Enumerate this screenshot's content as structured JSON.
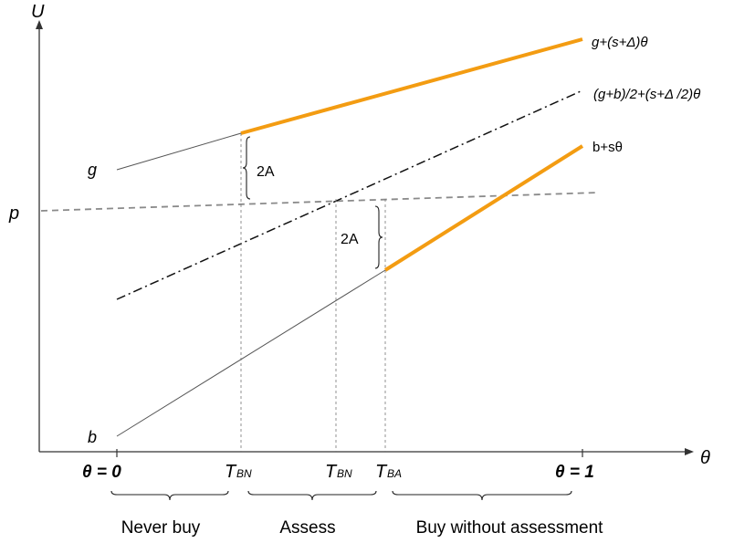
{
  "axes": {
    "y_label": "U",
    "x_label": "θ"
  },
  "left_labels": {
    "g": "g",
    "p": "p",
    "b": "b"
  },
  "line_labels": {
    "good": "g+(s+Δ)θ",
    "average": "(g+b)/2+(s+Δ /2)θ",
    "bad": "b+sθ"
  },
  "gaps": {
    "upper": "2A",
    "lower": "2A"
  },
  "x_ticks": {
    "theta0": "θ = 0",
    "theta1": "θ = 1",
    "t1": {
      "main": "T",
      "sub": "BN"
    },
    "t2": {
      "main": "T",
      "sub": "BN"
    },
    "t3": {
      "main": "T",
      "sub": "BA"
    }
  },
  "regions": {
    "never": "Never buy",
    "assess": "Assess",
    "buy": "Buy without assessment"
  },
  "colors": {
    "highlight": "#f39c12",
    "line": "#555555",
    "guide": "#777777"
  }
}
